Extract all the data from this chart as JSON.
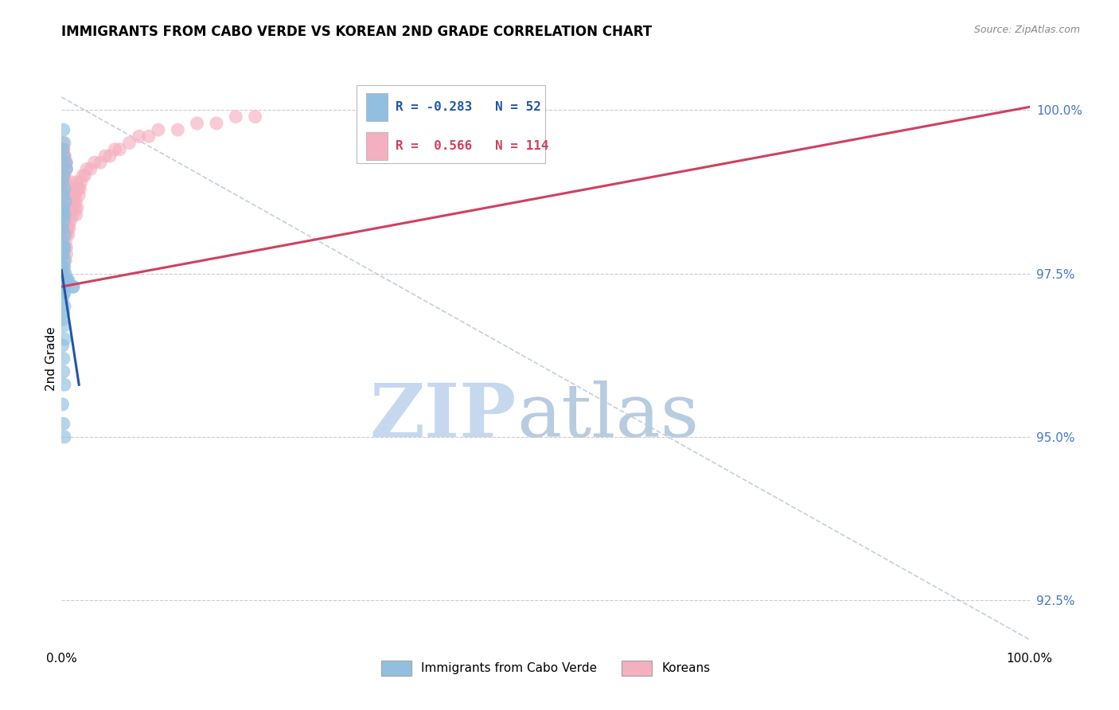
{
  "title": "IMMIGRANTS FROM CABO VERDE VS KOREAN 2ND GRADE CORRELATION CHART",
  "source": "Source: ZipAtlas.com",
  "ylabel": "2nd Grade",
  "yaxis_ticks": [
    92.5,
    95.0,
    97.5,
    100.0
  ],
  "yaxis_labels": [
    "92.5%",
    "95.0%",
    "97.5%",
    "100.0%"
  ],
  "xmin": 0.0,
  "xmax": 1.0,
  "ymin": 91.8,
  "ymax": 100.6,
  "blue_R": -0.283,
  "blue_N": 52,
  "pink_R": 0.566,
  "pink_N": 114,
  "blue_color": "#90bfe0",
  "pink_color": "#f5b0c0",
  "blue_line_color": "#2255aa",
  "pink_line_color": "#d04060",
  "legend_label_blue": "Immigrants from Cabo Verde",
  "legend_label_pink": "Koreans",
  "watermark_zip": "ZIP",
  "watermark_atlas": "atlas",
  "watermark_color_zip": "#c5d8ee",
  "watermark_color_atlas": "#b8cce0",
  "background_color": "#ffffff",
  "grid_color": "#cccccc",
  "right_axis_color": "#4477cc",
  "title_fontsize": 12,
  "blue_scatter_x": [
    0.002,
    0.003,
    0.001,
    0.002,
    0.005,
    0.005,
    0.002,
    0.001,
    0.003,
    0.002,
    0.004,
    0.001,
    0.002,
    0.003,
    0.001,
    0.002,
    0.001,
    0.003,
    0.001,
    0.002,
    0.003,
    0.002,
    0.001,
    0.003,
    0.002,
    0.001,
    0.002,
    0.004,
    0.002,
    0.001,
    0.001,
    0.002,
    0.003,
    0.002,
    0.001,
    0.003,
    0.002,
    0.001,
    0.002,
    0.003,
    0.001,
    0.002,
    0.002,
    0.003,
    0.001,
    0.002,
    0.003,
    0.001,
    0.006,
    0.007,
    0.012,
    0.012
  ],
  "blue_scatter_y": [
    99.7,
    99.5,
    99.4,
    99.3,
    99.2,
    99.1,
    99.0,
    98.9,
    98.8,
    98.7,
    98.6,
    98.5,
    98.5,
    98.4,
    98.4,
    98.3,
    98.2,
    98.1,
    98.0,
    97.9,
    97.9,
    97.8,
    97.8,
    97.7,
    97.6,
    97.6,
    97.5,
    97.5,
    97.4,
    97.4,
    97.3,
    97.3,
    97.2,
    97.2,
    97.1,
    97.0,
    96.9,
    96.8,
    96.7,
    96.5,
    96.4,
    96.2,
    96.0,
    95.8,
    95.5,
    95.2,
    95.0,
    97.4,
    97.4,
    97.4,
    97.3,
    97.3
  ],
  "pink_scatter_x": [
    0.002,
    0.001,
    0.003,
    0.002,
    0.004,
    0.002,
    0.003,
    0.004,
    0.005,
    0.003,
    0.006,
    0.004,
    0.005,
    0.006,
    0.004,
    0.005,
    0.007,
    0.005,
    0.006,
    0.007,
    0.008,
    0.006,
    0.007,
    0.008,
    0.009,
    0.007,
    0.008,
    0.009,
    0.01,
    0.008,
    0.009,
    0.01,
    0.011,
    0.012,
    0.01,
    0.011,
    0.012,
    0.013,
    0.014,
    0.015,
    0.013,
    0.014,
    0.015,
    0.016,
    0.017,
    0.018,
    0.016,
    0.017,
    0.019,
    0.02,
    0.022,
    0.024,
    0.026,
    0.03,
    0.034,
    0.04,
    0.045,
    0.05,
    0.055,
    0.06,
    0.07,
    0.08,
    0.09,
    0.1,
    0.12,
    0.14,
    0.16,
    0.18,
    0.2,
    0.001,
    0.002,
    0.003,
    0.002,
    0.003,
    0.004,
    0.003,
    0.004,
    0.005,
    0.002,
    0.003,
    0.004,
    0.005,
    0.006,
    0.004,
    0.005,
    0.003,
    0.004,
    0.002,
    0.003,
    0.001,
    0.002,
    0.003,
    0.004,
    0.003,
    0.002,
    0.001,
    0.003,
    0.002,
    0.004,
    0.005,
    0.003,
    0.002,
    0.006,
    0.005,
    0.004,
    0.003,
    0.005,
    0.004,
    0.003,
    0.002,
    0.004,
    0.003
  ],
  "pink_scatter_y": [
    99.3,
    99.0,
    99.1,
    98.9,
    98.8,
    98.7,
    98.6,
    98.5,
    98.4,
    98.8,
    98.7,
    98.6,
    98.5,
    98.4,
    98.3,
    98.2,
    98.1,
    98.5,
    98.4,
    98.3,
    98.2,
    98.6,
    98.5,
    98.4,
    98.3,
    98.7,
    98.6,
    98.5,
    98.4,
    98.8,
    98.7,
    98.6,
    98.5,
    98.4,
    98.9,
    98.8,
    98.7,
    98.6,
    98.5,
    98.4,
    98.8,
    98.7,
    98.6,
    98.5,
    98.8,
    98.7,
    98.9,
    98.8,
    98.8,
    98.9,
    99.0,
    99.0,
    99.1,
    99.1,
    99.2,
    99.2,
    99.3,
    99.3,
    99.4,
    99.4,
    99.5,
    99.6,
    99.6,
    99.7,
    99.7,
    99.8,
    99.8,
    99.9,
    99.9,
    99.2,
    99.0,
    98.8,
    98.7,
    98.5,
    98.4,
    98.2,
    98.1,
    97.9,
    99.1,
    99.0,
    98.9,
    98.8,
    98.7,
    99.2,
    99.1,
    99.3,
    99.2,
    99.4,
    99.3,
    99.5,
    99.4,
    99.3,
    99.2,
    99.1,
    99.0,
    98.9,
    98.8,
    98.7,
    98.6,
    98.5,
    98.4,
    98.3,
    98.2,
    98.1,
    98.0,
    97.9,
    97.8,
    97.7,
    97.6,
    97.5,
    97.4,
    97.3
  ],
  "blue_line_x0": 0.0,
  "blue_line_x1": 0.018,
  "blue_line_y0": 97.55,
  "blue_line_y1": 95.8,
  "pink_line_x0": 0.0,
  "pink_line_x1": 1.0,
  "pink_line_y0": 97.3,
  "pink_line_y1": 100.05,
  "dash_line_x0": 0.0,
  "dash_line_x1": 1.0,
  "dash_line_y0": 100.2,
  "dash_line_y1": 91.9
}
